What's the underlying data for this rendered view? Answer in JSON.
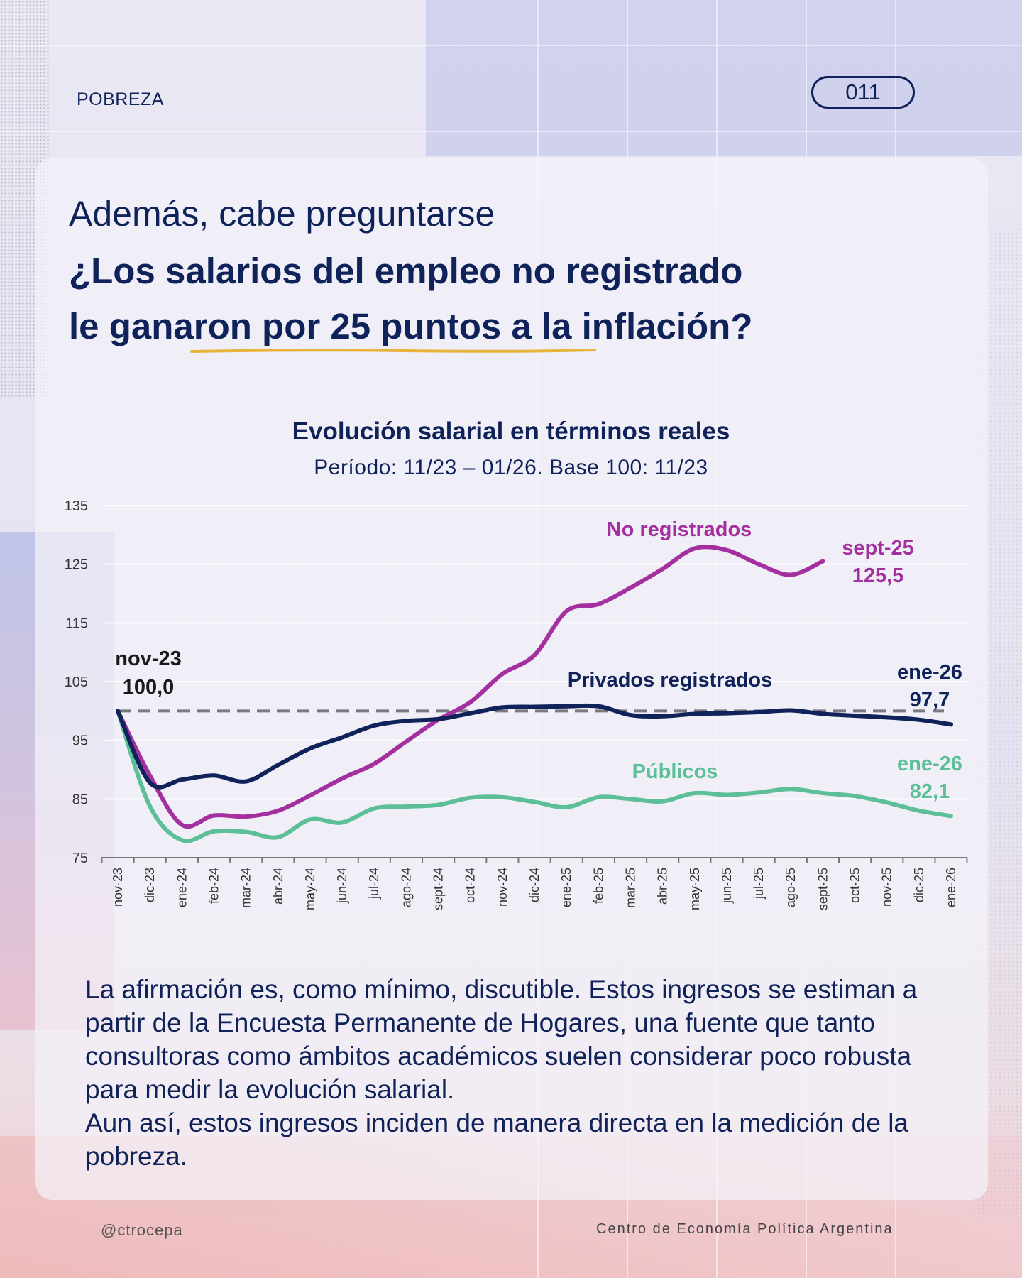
{
  "header": {
    "section": "POBREZA",
    "page_number": "011"
  },
  "headline": {
    "line1": "Además, cabe preguntarse",
    "line2": "¿Los salarios del empleo no registrado",
    "line3": "le ganaron por 25 puntos a la inflación?"
  },
  "colors": {
    "navy": "#0f2259",
    "magenta": "#a3309e",
    "green": "#5cbf98",
    "reference": "#7a7a80",
    "underline": "#e8b33a"
  },
  "chart_data": {
    "type": "line",
    "title": "Evolución salarial en términos reales",
    "subtitle": "Período: 11/23 – 01/26. Base 100: 11/23",
    "xlabel": "",
    "ylabel": "",
    "ylim": [
      75,
      135
    ],
    "yticks": [
      75,
      85,
      95,
      105,
      115,
      125,
      135
    ],
    "grid": true,
    "legend": "inline labels",
    "categories": [
      "nov-23",
      "dic-23",
      "ene-24",
      "feb-24",
      "mar-24",
      "abr-24",
      "may-24",
      "jun-24",
      "jul-24",
      "ago-24",
      "sept-24",
      "oct-24",
      "nov-24",
      "dic-24",
      "ene-25",
      "feb-25",
      "mar-25",
      "abr-25",
      "may-25",
      "jun-25",
      "jul-25",
      "ago-25",
      "sept-25",
      "oct-25",
      "nov-25",
      "dic-25",
      "ene-26"
    ],
    "reference_line": {
      "value": 100,
      "style": "dashed"
    },
    "series": [
      {
        "name": "No registrados",
        "color": "#a3309e",
        "values": [
          100,
          89.0,
          80.6,
          82.2,
          82.0,
          83.0,
          85.6,
          88.5,
          91.0,
          94.8,
          98.5,
          101.5,
          106.3,
          109.5,
          117.0,
          118.2,
          121.0,
          124.2,
          127.7,
          127.4,
          125.0,
          123.2,
          125.5,
          null,
          null,
          null,
          null
        ],
        "end_label": {
          "period": "sept-25",
          "value": "125,5"
        }
      },
      {
        "name": "Privados registrados",
        "color": "#0f2259",
        "values": [
          100,
          87.8,
          88.3,
          89.0,
          88.0,
          90.8,
          93.6,
          95.5,
          97.5,
          98.3,
          98.6,
          99.6,
          100.6,
          100.7,
          100.8,
          100.8,
          99.3,
          99.1,
          99.5,
          99.6,
          99.8,
          100.1,
          99.5,
          99.2,
          98.9,
          98.5,
          97.7
        ],
        "end_label": {
          "period": "ene-26",
          "value": "97,7"
        }
      },
      {
        "name": "Públicos",
        "color": "#5cbf98",
        "values": [
          100,
          83.8,
          78.0,
          79.5,
          79.4,
          78.5,
          81.5,
          81.0,
          83.4,
          83.7,
          84.0,
          85.2,
          85.3,
          84.5,
          83.6,
          85.3,
          85.0,
          84.6,
          86.0,
          85.7,
          86.1,
          86.7,
          86.0,
          85.5,
          84.4,
          83.0,
          82.1
        ],
        "end_label": {
          "period": "ene-26",
          "value": "82,1"
        }
      }
    ],
    "start_label": {
      "period": "nov-23",
      "value": "100,0"
    }
  },
  "body": {
    "paragraph1": "La afirmación es, como mínimo, discutible. Estos ingresos se estiman a partir de la Encuesta Permanente de Hogares, una fuente que tanto consultoras como ámbitos académicos suelen considerar poco robusta para medir la evolución salarial.",
    "paragraph2": "Aun así, estos ingresos inciden de manera directa en la medición de la pobreza."
  },
  "footer": {
    "handle": "@ctrocepa",
    "organization": "Centro de Economía Política Argentina"
  }
}
